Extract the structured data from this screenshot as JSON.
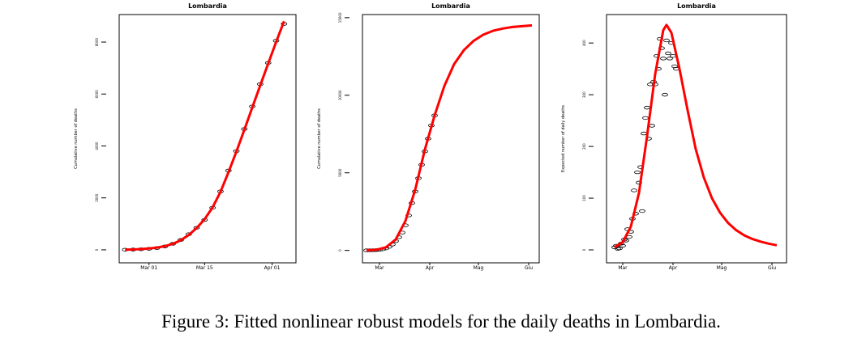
{
  "chart_data": [
    {
      "type": "line",
      "title": "Lombardia",
      "ylabel": "Cumulative number of deaths",
      "xlim": [
        -7.5,
        37
      ],
      "xticks": [
        {
          "value": 0,
          "label": "Mar 01"
        },
        {
          "value": 14,
          "label": "Mar 15"
        },
        {
          "value": 31,
          "label": "Apr 01"
        }
      ],
      "ylim": [
        -500,
        9060
      ],
      "yticks": [
        0,
        2000,
        4000,
        6000,
        8000
      ],
      "series": [
        {
          "type": "scatter",
          "color": "#000000",
          "x": [
            -6,
            -4,
            -2,
            0,
            2,
            4,
            6,
            8,
            10,
            12,
            14,
            16,
            18,
            20,
            22,
            24,
            26,
            28,
            30,
            32,
            34
          ],
          "values": [
            5,
            10,
            20,
            40,
            70,
            130,
            230,
            380,
            600,
            850,
            1150,
            1620,
            2250,
            3050,
            3800,
            4650,
            5520,
            6380,
            7200,
            8050,
            8700
          ]
        },
        {
          "type": "line",
          "color": "#ff0000",
          "x": [
            -6,
            -4,
            -2,
            0,
            2,
            4,
            6,
            8,
            10,
            12,
            14,
            16,
            18,
            20,
            22,
            24,
            26,
            28,
            30,
            32,
            34
          ],
          "values": [
            8,
            15,
            28,
            50,
            85,
            140,
            230,
            370,
            570,
            840,
            1180,
            1630,
            2230,
            2980,
            3780,
            4620,
            5480,
            6330,
            7170,
            8000,
            8800
          ]
        }
      ]
    },
    {
      "type": "line",
      "title": "Lombardia",
      "ylabel": "Cumulative number of deaths",
      "xlim": [
        -10.5,
        98.5
      ],
      "xticks": [
        {
          "value": 0,
          "label": "Mar"
        },
        {
          "value": 31,
          "label": "Apr"
        },
        {
          "value": 61,
          "label": "Mag"
        },
        {
          "value": 92,
          "label": "Giu"
        }
      ],
      "ylim": [
        -800,
        15200
      ],
      "yticks": [
        0,
        5000,
        10000,
        15000
      ],
      "series": [
        {
          "type": "scatter",
          "color": "#000000",
          "x": [
            -8,
            -6,
            -4,
            -2,
            0,
            2,
            4,
            6,
            8,
            10,
            12,
            14,
            16,
            18,
            20,
            22,
            24,
            26,
            28,
            30,
            32,
            34
          ],
          "values": [
            3,
            5,
            10,
            20,
            40,
            70,
            130,
            230,
            380,
            600,
            850,
            1150,
            1620,
            2250,
            3050,
            3800,
            4650,
            5520,
            6380,
            7200,
            8050,
            8700
          ]
        },
        {
          "type": "line",
          "color": "#ff0000",
          "x": [
            -8,
            -2,
            4,
            10,
            16,
            22,
            28,
            34,
            40,
            46,
            52,
            58,
            64,
            70,
            76,
            82,
            88,
            94
          ],
          "values": [
            10,
            40,
            200,
            700,
            1900,
            3900,
            6500,
            8700,
            10600,
            12000,
            12900,
            13500,
            13900,
            14150,
            14300,
            14400,
            14450,
            14500
          ]
        }
      ]
    },
    {
      "type": "line",
      "title": "Lombardia",
      "ylabel": "Expected number of daily deaths",
      "xlim": [
        -10,
        101
      ],
      "xticks": [
        {
          "value": 0,
          "label": "Mar"
        },
        {
          "value": 31,
          "label": "Apr"
        },
        {
          "value": 61,
          "label": "Mag"
        },
        {
          "value": 92,
          "label": "Giu"
        }
      ],
      "ylim": [
        -25,
        455
      ],
      "yticks": [
        0,
        100,
        200,
        300,
        400
      ],
      "series": [
        {
          "type": "scatter",
          "color": "#000000",
          "x": [
            -5,
            -4,
            -3,
            -2,
            -1,
            0,
            1,
            2,
            3,
            4,
            5,
            6,
            7,
            8,
            9,
            10,
            11,
            12,
            13,
            14,
            15,
            16,
            17,
            18,
            19,
            20,
            21,
            22,
            23,
            24,
            25,
            26,
            27,
            28,
            29,
            30,
            31,
            32,
            33
          ],
          "values": [
            5,
            8,
            2,
            3,
            12,
            8,
            20,
            18,
            40,
            25,
            35,
            60,
            115,
            70,
            150,
            130,
            160,
            75,
            225,
            255,
            275,
            215,
            320,
            240,
            325,
            320,
            375,
            350,
            408,
            390,
            370,
            300,
            405,
            380,
            370,
            400,
            375,
            355,
            350
          ]
        },
        {
          "type": "line",
          "color": "#ff0000",
          "x": [
            -5,
            0,
            5,
            10,
            15,
            20,
            25,
            27,
            30,
            35,
            40,
            45,
            50,
            55,
            60,
            65,
            70,
            75,
            80,
            85,
            90,
            95
          ],
          "values": [
            5,
            15,
            45,
            110,
            220,
            340,
            425,
            435,
            420,
            350,
            270,
            195,
            140,
            100,
            72,
            52,
            38,
            28,
            21,
            16,
            12,
            9
          ]
        }
      ]
    }
  ],
  "caption": "Figure 3: Fitted nonlinear robust models for the daily deaths in Lombardia."
}
